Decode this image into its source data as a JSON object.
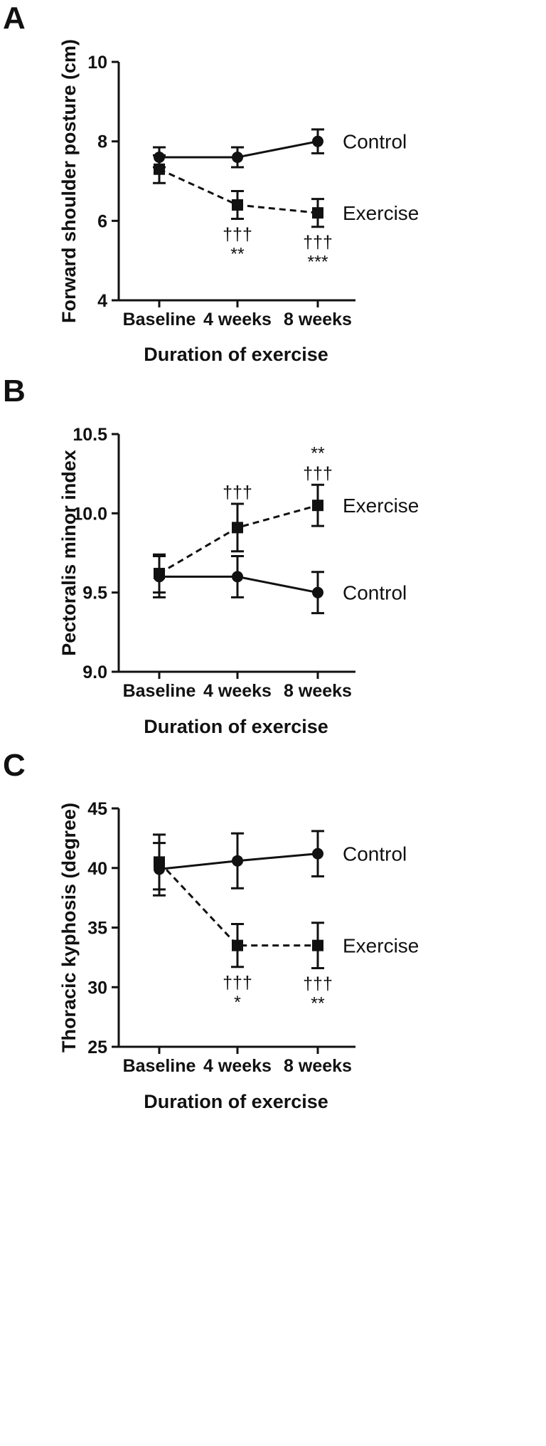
{
  "chart_data": [
    {
      "panel": "A",
      "type": "line",
      "xlabel": "Duration of exercise",
      "ylabel": "Forward shoulder posture (cm)",
      "categories": [
        "Baseline",
        "4 weeks",
        "8 weeks"
      ],
      "ylim": [
        4,
        10
      ],
      "yticks": [
        "4",
        "6",
        "8",
        "10"
      ],
      "series": [
        {
          "name": "Control",
          "marker": "circle",
          "dash": false,
          "values": [
            7.6,
            7.6,
            8.0
          ],
          "err": [
            0.25,
            0.25,
            0.3
          ]
        },
        {
          "name": "Exercise",
          "marker": "square",
          "dash": true,
          "values": [
            7.3,
            6.4,
            6.2
          ],
          "err": [
            0.35,
            0.35,
            0.35
          ]
        }
      ],
      "annotations": [
        {
          "category": "4 weeks",
          "lines": [
            "†††",
            "**"
          ]
        },
        {
          "category": "8 weeks",
          "lines": [
            "†††",
            "***"
          ]
        }
      ]
    },
    {
      "panel": "B",
      "type": "line",
      "xlabel": "Duration of exercise",
      "ylabel": "Pectoralis minor index",
      "categories": [
        "Baseline",
        "4 weeks",
        "8 weeks"
      ],
      "ylim": [
        9.0,
        10.5
      ],
      "yticks": [
        "9.0",
        "9.5",
        "10.0",
        "10.5"
      ],
      "series": [
        {
          "name": "Exercise",
          "marker": "square",
          "dash": true,
          "values": [
            9.62,
            9.91,
            10.05
          ],
          "err": [
            0.12,
            0.15,
            0.13
          ]
        },
        {
          "name": "Control",
          "marker": "circle",
          "dash": false,
          "values": [
            9.6,
            9.6,
            9.5
          ],
          "err": [
            0.13,
            0.13,
            0.13
          ]
        }
      ],
      "annotations": [
        {
          "category": "4 weeks",
          "lines": [
            "†††"
          ]
        },
        {
          "category": "8 weeks",
          "lines": [
            "**",
            "†††"
          ]
        }
      ]
    },
    {
      "panel": "C",
      "type": "line",
      "xlabel": "Duration of exercise",
      "ylabel": "Thoracic kyphosis (degree)",
      "categories": [
        "Baseline",
        "4 weeks",
        "8 weeks"
      ],
      "ylim": [
        25,
        45
      ],
      "yticks": [
        "25",
        "30",
        "35",
        "40",
        "45"
      ],
      "series": [
        {
          "name": "Control",
          "marker": "circle",
          "dash": false,
          "values": [
            39.9,
            40.6,
            41.2
          ],
          "err": [
            2.2,
            2.3,
            1.9
          ]
        },
        {
          "name": "Exercise",
          "marker": "square",
          "dash": true,
          "values": [
            40.5,
            33.5,
            33.5
          ],
          "err": [
            2.3,
            1.8,
            1.9
          ]
        }
      ],
      "annotations": [
        {
          "category": "4 weeks",
          "lines": [
            "†††",
            "*"
          ]
        },
        {
          "category": "8 weeks",
          "lines": [
            "†††",
            "**"
          ]
        }
      ]
    }
  ]
}
